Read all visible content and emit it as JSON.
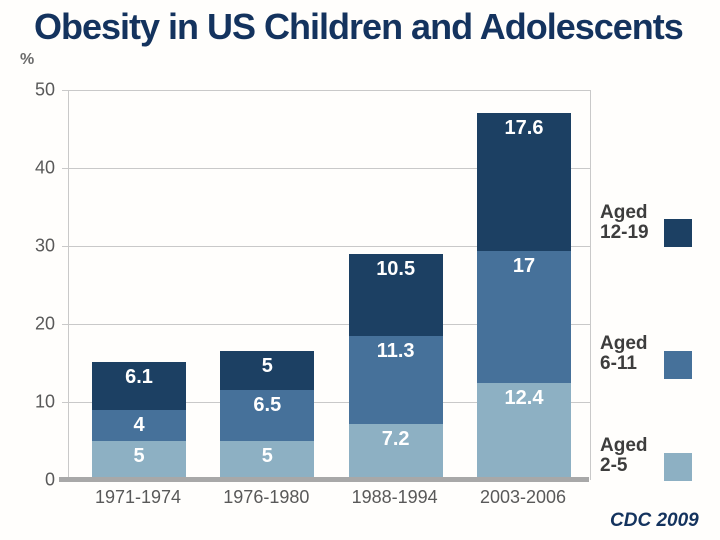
{
  "slide": {
    "title": "Obesity in US Children and Adolescents",
    "y_axis_unit_label": "%",
    "source_note": "CDC 2009"
  },
  "colors": {
    "title_text": "#14335e",
    "source_text": "#14335e",
    "axis_text": "#595959",
    "legend_text": "#3d3d3d",
    "bar_label_text": "#ffffff",
    "gridline": "#c9c9c9",
    "axis_line": "#a8a8a8",
    "aged_2_5": "#8db0c3",
    "aged_6_11": "#46719a",
    "aged_12_19": "#1c4063"
  },
  "chart_data": {
    "type": "bar",
    "stacked": true,
    "title": "Obesity in US Children and Adolescents",
    "xlabel": "",
    "ylabel": "%",
    "ylim": [
      0,
      50
    ],
    "grid_step": 10,
    "grid": true,
    "legend_position": "right",
    "categories": [
      "1971-1974",
      "1976-1980",
      "1988-1994",
      "2003-2006"
    ],
    "series": [
      {
        "name": "Aged 2-5",
        "color": "#8db0c3",
        "values": [
          5,
          5,
          7.2,
          12.4
        ]
      },
      {
        "name": "Aged 6-11",
        "color": "#46719a",
        "values": [
          4,
          6.5,
          11.3,
          17
        ]
      },
      {
        "name": "Aged 12-19",
        "color": "#1c4063",
        "values": [
          6.1,
          5,
          10.5,
          17.6
        ]
      }
    ],
    "legend": [
      {
        "line1": "Aged",
        "line2": "12-19",
        "series": "Aged 12-19",
        "color": "#1c4063"
      },
      {
        "line1": "Aged",
        "line2": "6-11",
        "series": "Aged 6-11",
        "color": "#46719a"
      },
      {
        "line1": "Aged",
        "line2": "2-5",
        "series": "Aged 2-5",
        "color": "#8db0c3"
      }
    ],
    "y_tick_labels": [
      "0",
      "10",
      "20",
      "30",
      "40",
      "50"
    ]
  }
}
